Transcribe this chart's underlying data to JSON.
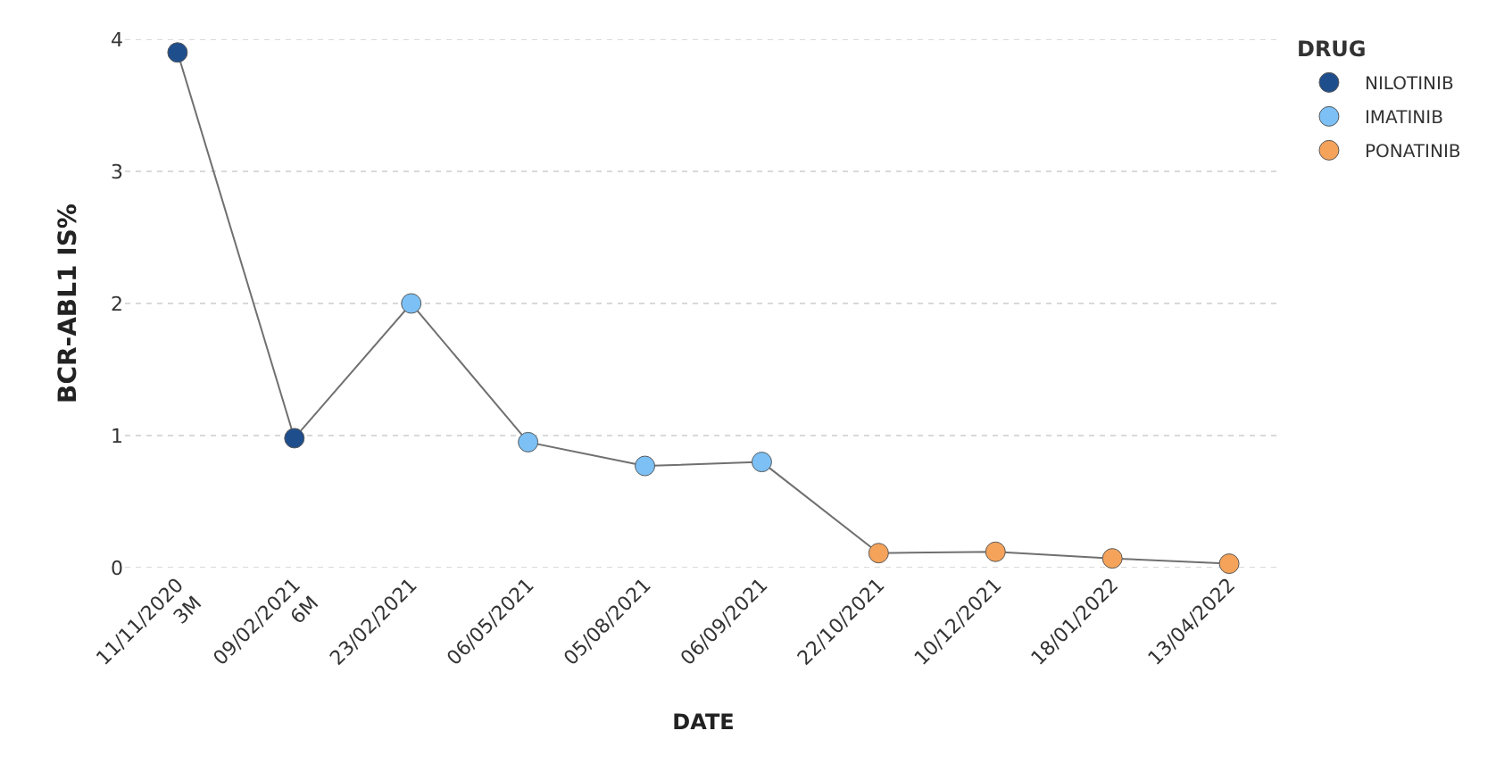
{
  "chart_data": {
    "type": "line",
    "xlabel": "DATE",
    "ylabel": "BCR-ABL1 IS%",
    "legend_title": "DRUG",
    "categories": [
      "11/11/2020\n3M",
      "09/02/2021\n6M",
      "23/02/2021",
      "06/05/2021",
      "05/08/2021",
      "06/09/2021",
      "22/10/2021",
      "10/12/2021",
      "18/01/2022",
      "13/04/2022"
    ],
    "series": [
      {
        "color": "#707070",
        "marker": "none",
        "values": [
          3.9,
          0.98,
          2.0,
          0.95,
          0.77,
          0.8,
          0.11,
          0.12,
          0.07,
          0.03
        ]
      },
      {
        "type": "scatter",
        "name": "NILOTINIB",
        "color": "#1f4e8c",
        "values": [
          3.9,
          0.98,
          null,
          null,
          null,
          null,
          null,
          null,
          null,
          null
        ]
      },
      {
        "type": "scatter",
        "name": "IMATINIB",
        "color": "#7cc0f5",
        "values": [
          null,
          null,
          2.0,
          0.95,
          0.77,
          0.8,
          null,
          null,
          null,
          null
        ]
      },
      {
        "type": "scatter",
        "name": "PONATINIB",
        "color": "#f5a35a",
        "values": [
          null,
          null,
          null,
          null,
          null,
          null,
          0.11,
          0.12,
          0.07,
          0.03
        ]
      }
    ],
    "ylim": [
      0,
      4
    ],
    "yticks": [
      0,
      1,
      2,
      3,
      4
    ],
    "grid": "y",
    "legend": "top right",
    "marker": "circle"
  }
}
